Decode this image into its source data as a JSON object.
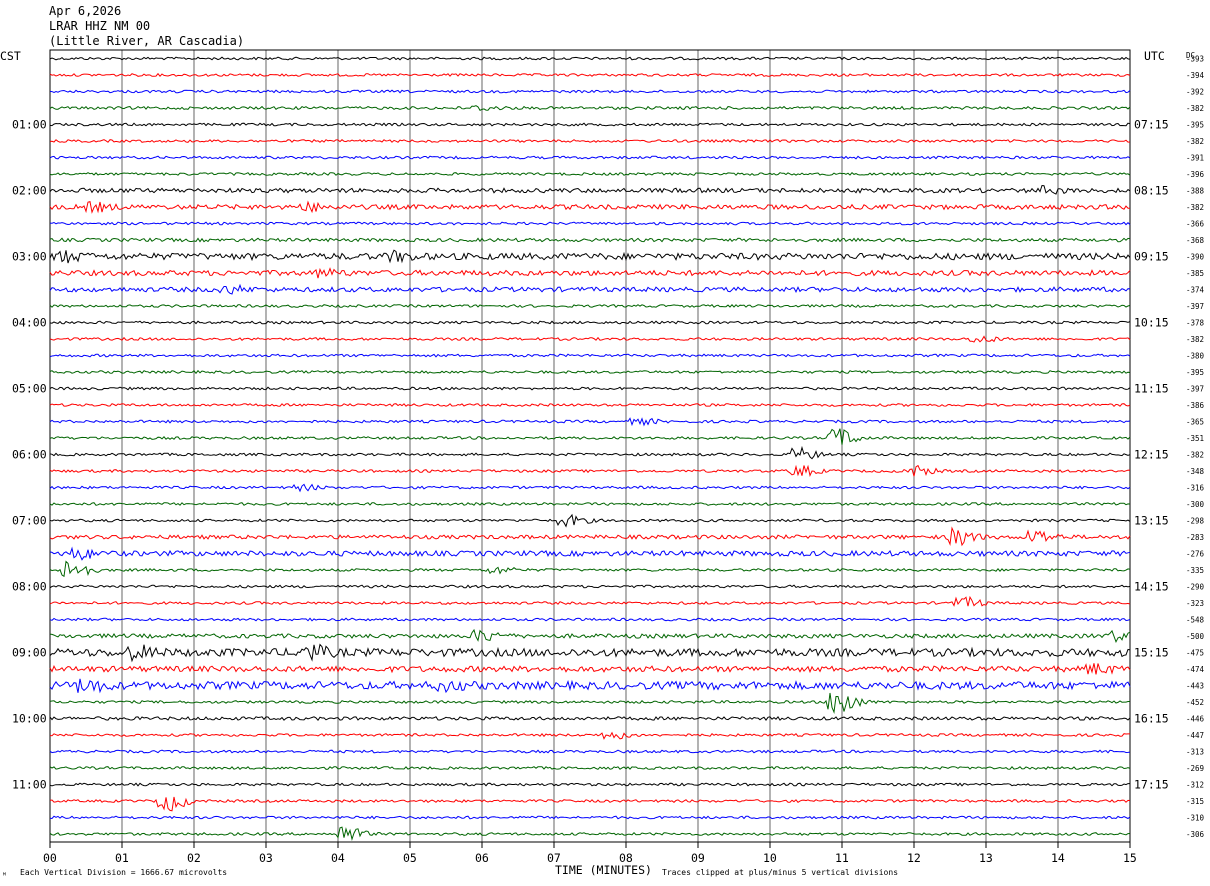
{
  "header": {
    "date": "Apr 6,2026",
    "station": "LRAR HHZ NM 00",
    "location": "(Little River, AR Cascadia)"
  },
  "left_zone": "CST",
  "right_zone": "UTC",
  "dc_label": "DC",
  "chart_data": {
    "type": "line",
    "title": "",
    "xlabel": "TIME (MINUTES)",
    "x_range": [
      0,
      15
    ],
    "x_ticks": [
      "00",
      "01",
      "02",
      "03",
      "04",
      "05",
      "06",
      "07",
      "08",
      "09",
      "10",
      "11",
      "12",
      "13",
      "14",
      "15"
    ],
    "traces_per_hour": 4,
    "left_hour_labels": [
      "01:00",
      "02:00",
      "03:00",
      "04:00",
      "05:00",
      "06:00",
      "07:00",
      "08:00",
      "09:00",
      "10:00",
      "11:00"
    ],
    "right_hour_labels": [
      "07:15",
      "08:15",
      "09:15",
      "10:15",
      "11:15",
      "12:15",
      "13:15",
      "14:15",
      "15:15",
      "16:15",
      "17:15"
    ],
    "trace_colors": [
      "#000000",
      "#ff0000",
      "#0000ff",
      "#006400"
    ],
    "dc_offsets": [
      "-393",
      "-394",
      "-392",
      "-382",
      "-395",
      "-382",
      "-391",
      "-396",
      "-388",
      "-382",
      "-366",
      "-368",
      "-390",
      "-385",
      "-374",
      "-397",
      "-378",
      "-382",
      "-380",
      "-395",
      "-397",
      "-386",
      "-365",
      "-351",
      "-382",
      "-348",
      "-316",
      "-300",
      "-298",
      "-283",
      "-276",
      "-335",
      "-290",
      "-323",
      "-548",
      "-500",
      "-475",
      "-474",
      "-443",
      "-452",
      "-446",
      "-447",
      "-313",
      "-269",
      "-312",
      "-315",
      "-310",
      "-306"
    ],
    "trace_amplitude_level": [
      1,
      1,
      1,
      1.1,
      1,
      1,
      1,
      1,
      1.7,
      1.8,
      1,
      1.3,
      2.5,
      2,
      1.8,
      1,
      1,
      1,
      1,
      1,
      1,
      1,
      1,
      1,
      1,
      1,
      1,
      1,
      1,
      1.5,
      2,
      1,
      1,
      1,
      1,
      1.6,
      3,
      2.2,
      3,
      1,
      1.3,
      1,
      1,
      1,
      1,
      1,
      1,
      1
    ],
    "events": [
      {
        "trace": 3,
        "minute": 6.0,
        "amp": 2.0
      },
      {
        "trace": 9,
        "minute": 0.6,
        "amp": 3.5
      },
      {
        "trace": 9,
        "minute": 3.6,
        "amp": 3.0
      },
      {
        "trace": 8,
        "minute": 13.8,
        "amp": 3.0
      },
      {
        "trace": 12,
        "minute": 0.2,
        "amp": 4.0
      },
      {
        "trace": 12,
        "minute": 4.8,
        "amp": 3.5
      },
      {
        "trace": 13,
        "minute": 3.8,
        "amp": 3.0
      },
      {
        "trace": 14,
        "minute": 2.5,
        "amp": 3.0
      },
      {
        "trace": 17,
        "minute": 12.9,
        "amp": 3.0
      },
      {
        "trace": 22,
        "minute": 8.2,
        "amp": 2.5
      },
      {
        "trace": 23,
        "minute": 10.95,
        "amp": 9.0
      },
      {
        "trace": 24,
        "minute": 10.4,
        "amp": 6.0
      },
      {
        "trace": 25,
        "minute": 10.4,
        "amp": 5.0
      },
      {
        "trace": 25,
        "minute": 12.0,
        "amp": 5.0
      },
      {
        "trace": 26,
        "minute": 3.5,
        "amp": 2.5
      },
      {
        "trace": 28,
        "minute": 7.2,
        "amp": 5.0
      },
      {
        "trace": 29,
        "minute": 12.6,
        "amp": 8.0
      },
      {
        "trace": 29,
        "minute": 13.7,
        "amp": 6.0
      },
      {
        "trace": 30,
        "minute": 0.4,
        "amp": 4.0
      },
      {
        "trace": 31,
        "minute": 0.3,
        "amp": 10.0
      },
      {
        "trace": 31,
        "minute": 6.2,
        "amp": 3.0
      },
      {
        "trace": 33,
        "minute": 12.7,
        "amp": 5.0
      },
      {
        "trace": 35,
        "minute": 6.0,
        "amp": 5.0
      },
      {
        "trace": 35,
        "minute": 14.8,
        "amp": 4.0
      },
      {
        "trace": 36,
        "minute": 3.6,
        "amp": 6.0
      },
      {
        "trace": 36,
        "minute": 1.2,
        "amp": 5.0
      },
      {
        "trace": 37,
        "minute": 14.5,
        "amp": 4.0
      },
      {
        "trace": 38,
        "minute": 0.5,
        "amp": 5.0
      },
      {
        "trace": 38,
        "minute": 5.5,
        "amp": 3.0
      },
      {
        "trace": 39,
        "minute": 10.95,
        "amp": 14.0
      },
      {
        "trace": 41,
        "minute": 7.8,
        "amp": 3.5
      },
      {
        "trace": 45,
        "minute": 1.65,
        "amp": 9.0
      },
      {
        "trace": 47,
        "minute": 4.1,
        "amp": 8.0
      }
    ]
  },
  "footer": {
    "scale_note": "Each Vertical Division = 1666.67 microvolts",
    "clip_note": "Traces clipped at plus/minus 5 vertical divisions",
    "corner_mark": "ᴹ"
  }
}
